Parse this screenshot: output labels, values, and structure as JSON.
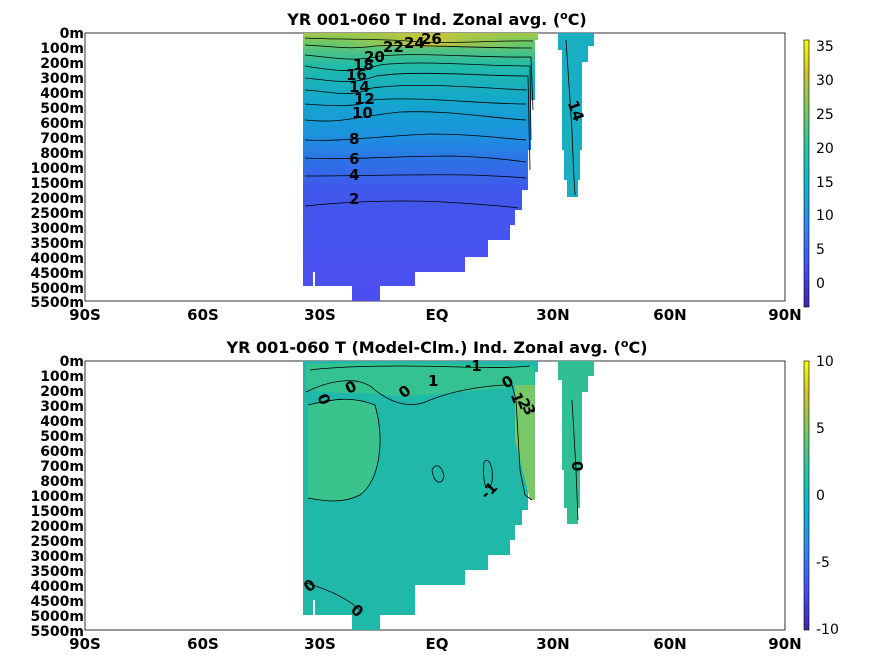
{
  "chart_data": [
    {
      "type": "heatmap",
      "title": "YR 001-060 T Ind. Zonal avg. (°C)",
      "title_parts": {
        "main": "YR 001-060 T Ind. Zonal avg. (",
        "sup": "o",
        "tail": "C)"
      },
      "ylim": [
        "0m",
        "5500m"
      ],
      "y_ticks": [
        "0m",
        "100m",
        "200m",
        "300m",
        "400m",
        "500m",
        "600m",
        "700m",
        "800m",
        "1000m",
        "1500m",
        "2000m",
        "2500m",
        "3000m",
        "3500m",
        "4000m",
        "4500m",
        "5000m",
        "5500m"
      ],
      "x_ticks": [
        "90S",
        "60S",
        "30S",
        "EQ",
        "30N",
        "60N",
        "90N"
      ],
      "colorbar": {
        "min": -3,
        "max": 36,
        "ticks": [
          0,
          5,
          10,
          15,
          20,
          25,
          30,
          35
        ]
      },
      "contour_labels": [
        "26",
        "24",
        "22",
        "20",
        "18",
        "16",
        "14",
        "12",
        "10",
        "8",
        "6",
        "4",
        "2",
        "14"
      ],
      "grid": false
    },
    {
      "type": "heatmap",
      "title": "YR 001-060 T (Model-Clm.) Ind. Zonal avg. (°C)",
      "title_parts": {
        "main": "YR 001-060 T (Model-Clm.) Ind. Zonal avg. (",
        "sup": "o",
        "tail": "C)"
      },
      "ylim": [
        "0m",
        "5500m"
      ],
      "y_ticks": [
        "0m",
        "100m",
        "200m",
        "300m",
        "400m",
        "500m",
        "600m",
        "700m",
        "800m",
        "1000m",
        "1500m",
        "2000m",
        "2500m",
        "3000m",
        "3500m",
        "4000m",
        "4500m",
        "5000m",
        "5500m"
      ],
      "x_ticks": [
        "90S",
        "60S",
        "30S",
        "EQ",
        "30N",
        "60N",
        "90N"
      ],
      "colorbar": {
        "min": -10,
        "max": 10,
        "ticks": [
          10,
          5,
          0,
          -5,
          -10
        ]
      },
      "contour_labels": [
        "-1",
        "1",
        "0",
        "0",
        "0",
        "0",
        "1",
        "2",
        "3",
        "0",
        "-1",
        "0",
        "0"
      ],
      "grid": false
    }
  ]
}
